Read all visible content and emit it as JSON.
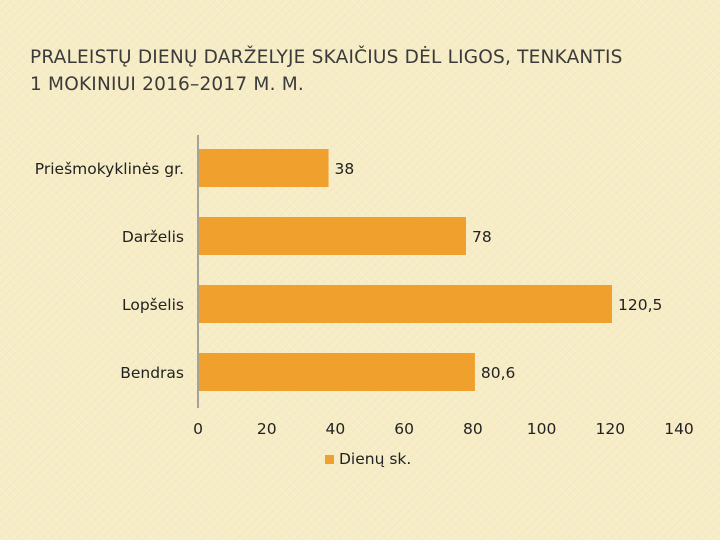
{
  "slide": {
    "title_line1": "PRALEISTŲ DIENŲ DARŽELYJE SKAIČIUS DĖL LIGOS, TENKANTIS",
    "title_line2": "1 MOKINIUI 2016–2017 M. M."
  },
  "chart_data": {
    "type": "bar",
    "orientation": "horizontal",
    "categories": [
      "Priešmokyklinės gr.",
      "Darželis",
      "Lopšelis",
      "Bendras"
    ],
    "series": [
      {
        "name": "Dienų sk.",
        "values": [
          38,
          78,
          120.5,
          80.6
        ],
        "labels": [
          "38",
          "78",
          "120,5",
          "80,6"
        ],
        "color": "#f0a02c"
      }
    ],
    "xlim": [
      0,
      140
    ],
    "xticks": [
      0,
      20,
      40,
      60,
      80,
      100,
      120,
      140
    ],
    "grid": false,
    "legend": "bottom",
    "axis_color": "#8a8a8a"
  }
}
